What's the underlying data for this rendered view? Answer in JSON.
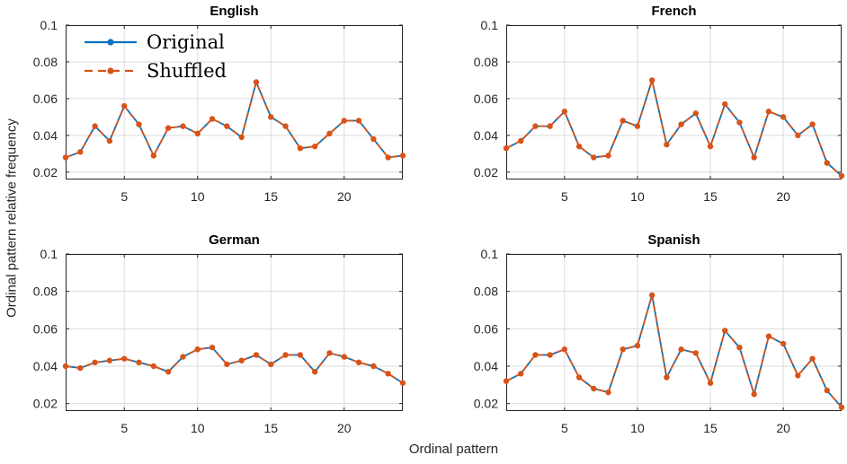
{
  "figure": {
    "xlabel": "Ordinal pattern",
    "ylabel": "Ordinal pattern relative frequency"
  },
  "theme": {
    "background": "#ffffff",
    "axis_color": "#262626",
    "grid_color": "#dcdcdc",
    "tick_label_color": "#262626",
    "title_color": "#000000",
    "tick_length": 4
  },
  "series_styles": {
    "original": {
      "color": "#0072BD",
      "dash": "",
      "line_width": 1.8,
      "marker_radius": 2.8
    },
    "shuffled": {
      "color": "#D95319",
      "dash": "7 4.5",
      "line_width": 1.8,
      "marker_radius": 3.2
    }
  },
  "legend": {
    "items": [
      {
        "label": "Original",
        "style": "original"
      },
      {
        "label": "Shuffled",
        "style": "shuffled"
      }
    ],
    "position": "top-left of English panel",
    "box": false
  },
  "chart_data": [
    {
      "type": "line",
      "title": "English",
      "xlim": [
        1,
        24
      ],
      "ylim": [
        0.016,
        0.1
      ],
      "xticks": [
        5,
        10,
        15,
        20
      ],
      "yticks": [
        0.02,
        0.04,
        0.06,
        0.08,
        0.1
      ],
      "yticklabels": [
        "0.02",
        "0.04",
        "0.06",
        "0.08",
        "0.1"
      ],
      "grid": true,
      "x": [
        1,
        2,
        3,
        4,
        5,
        6,
        7,
        8,
        9,
        10,
        11,
        12,
        13,
        14,
        15,
        16,
        17,
        18,
        19,
        20,
        21,
        22,
        23,
        24
      ],
      "series": [
        {
          "name": "Original",
          "style": "original",
          "values": [
            0.028,
            0.031,
            0.045,
            0.037,
            0.056,
            0.046,
            0.029,
            0.044,
            0.045,
            0.041,
            0.049,
            0.045,
            0.039,
            0.069,
            0.05,
            0.045,
            0.033,
            0.034,
            0.041,
            0.048,
            0.048,
            0.038,
            0.028,
            0.029
          ]
        },
        {
          "name": "Shuffled",
          "style": "shuffled",
          "values": [
            0.028,
            0.031,
            0.045,
            0.037,
            0.056,
            0.046,
            0.029,
            0.044,
            0.045,
            0.041,
            0.049,
            0.045,
            0.039,
            0.069,
            0.05,
            0.045,
            0.033,
            0.034,
            0.041,
            0.048,
            0.048,
            0.038,
            0.028,
            0.029
          ]
        }
      ]
    },
    {
      "type": "line",
      "title": "French",
      "xlim": [
        1,
        24
      ],
      "ylim": [
        0.016,
        0.1
      ],
      "xticks": [
        5,
        10,
        15,
        20
      ],
      "yticks": [
        0.02,
        0.04,
        0.06,
        0.08,
        0.1
      ],
      "yticklabels": [
        "0.02",
        "0.04",
        "0.06",
        "0.08",
        "0.1"
      ],
      "grid": true,
      "x": [
        1,
        2,
        3,
        4,
        5,
        6,
        7,
        8,
        9,
        10,
        11,
        12,
        13,
        14,
        15,
        16,
        17,
        18,
        19,
        20,
        21,
        22,
        23,
        24
      ],
      "series": [
        {
          "name": "Original",
          "style": "original",
          "values": [
            0.033,
            0.037,
            0.045,
            0.045,
            0.053,
            0.034,
            0.028,
            0.029,
            0.048,
            0.045,
            0.07,
            0.035,
            0.046,
            0.052,
            0.034,
            0.057,
            0.047,
            0.028,
            0.053,
            0.05,
            0.04,
            0.046,
            0.025,
            0.018
          ]
        },
        {
          "name": "Shuffled",
          "style": "shuffled",
          "values": [
            0.033,
            0.037,
            0.045,
            0.045,
            0.053,
            0.034,
            0.028,
            0.029,
            0.048,
            0.045,
            0.07,
            0.035,
            0.046,
            0.052,
            0.034,
            0.057,
            0.047,
            0.028,
            0.053,
            0.05,
            0.04,
            0.046,
            0.025,
            0.018
          ]
        }
      ]
    },
    {
      "type": "line",
      "title": "German",
      "xlim": [
        1,
        24
      ],
      "ylim": [
        0.016,
        0.1
      ],
      "xticks": [
        5,
        10,
        15,
        20
      ],
      "yticks": [
        0.02,
        0.04,
        0.06,
        0.08,
        0.1
      ],
      "yticklabels": [
        "0.02",
        "0.04",
        "0.06",
        "0.08",
        "0.1"
      ],
      "grid": true,
      "x": [
        1,
        2,
        3,
        4,
        5,
        6,
        7,
        8,
        9,
        10,
        11,
        12,
        13,
        14,
        15,
        16,
        17,
        18,
        19,
        20,
        21,
        22,
        23,
        24
      ],
      "series": [
        {
          "name": "Original",
          "style": "original",
          "values": [
            0.04,
            0.039,
            0.042,
            0.043,
            0.044,
            0.042,
            0.04,
            0.037,
            0.045,
            0.049,
            0.05,
            0.041,
            0.043,
            0.046,
            0.041,
            0.046,
            0.046,
            0.037,
            0.047,
            0.045,
            0.042,
            0.04,
            0.036,
            0.031
          ]
        },
        {
          "name": "Shuffled",
          "style": "shuffled",
          "values": [
            0.04,
            0.039,
            0.042,
            0.043,
            0.044,
            0.042,
            0.04,
            0.037,
            0.045,
            0.049,
            0.05,
            0.041,
            0.043,
            0.046,
            0.041,
            0.046,
            0.046,
            0.037,
            0.047,
            0.045,
            0.042,
            0.04,
            0.036,
            0.031
          ]
        }
      ]
    },
    {
      "type": "line",
      "title": "Spanish",
      "xlim": [
        1,
        24
      ],
      "ylim": [
        0.016,
        0.1
      ],
      "xticks": [
        5,
        10,
        15,
        20
      ],
      "yticks": [
        0.02,
        0.04,
        0.06,
        0.08,
        0.1
      ],
      "yticklabels": [
        "0.02",
        "0.04",
        "0.06",
        "0.08",
        "0.1"
      ],
      "grid": true,
      "x": [
        1,
        2,
        3,
        4,
        5,
        6,
        7,
        8,
        9,
        10,
        11,
        12,
        13,
        14,
        15,
        16,
        17,
        18,
        19,
        20,
        21,
        22,
        23,
        24
      ],
      "series": [
        {
          "name": "Original",
          "style": "original",
          "values": [
            0.032,
            0.036,
            0.046,
            0.046,
            0.049,
            0.034,
            0.028,
            0.026,
            0.049,
            0.051,
            0.078,
            0.034,
            0.049,
            0.047,
            0.031,
            0.059,
            0.05,
            0.025,
            0.056,
            0.052,
            0.035,
            0.044,
            0.027,
            0.018
          ]
        },
        {
          "name": "Shuffled",
          "style": "shuffled",
          "values": [
            0.032,
            0.036,
            0.046,
            0.046,
            0.049,
            0.034,
            0.028,
            0.026,
            0.049,
            0.051,
            0.078,
            0.034,
            0.049,
            0.047,
            0.031,
            0.059,
            0.05,
            0.025,
            0.056,
            0.052,
            0.035,
            0.044,
            0.027,
            0.018
          ]
        }
      ]
    }
  ]
}
